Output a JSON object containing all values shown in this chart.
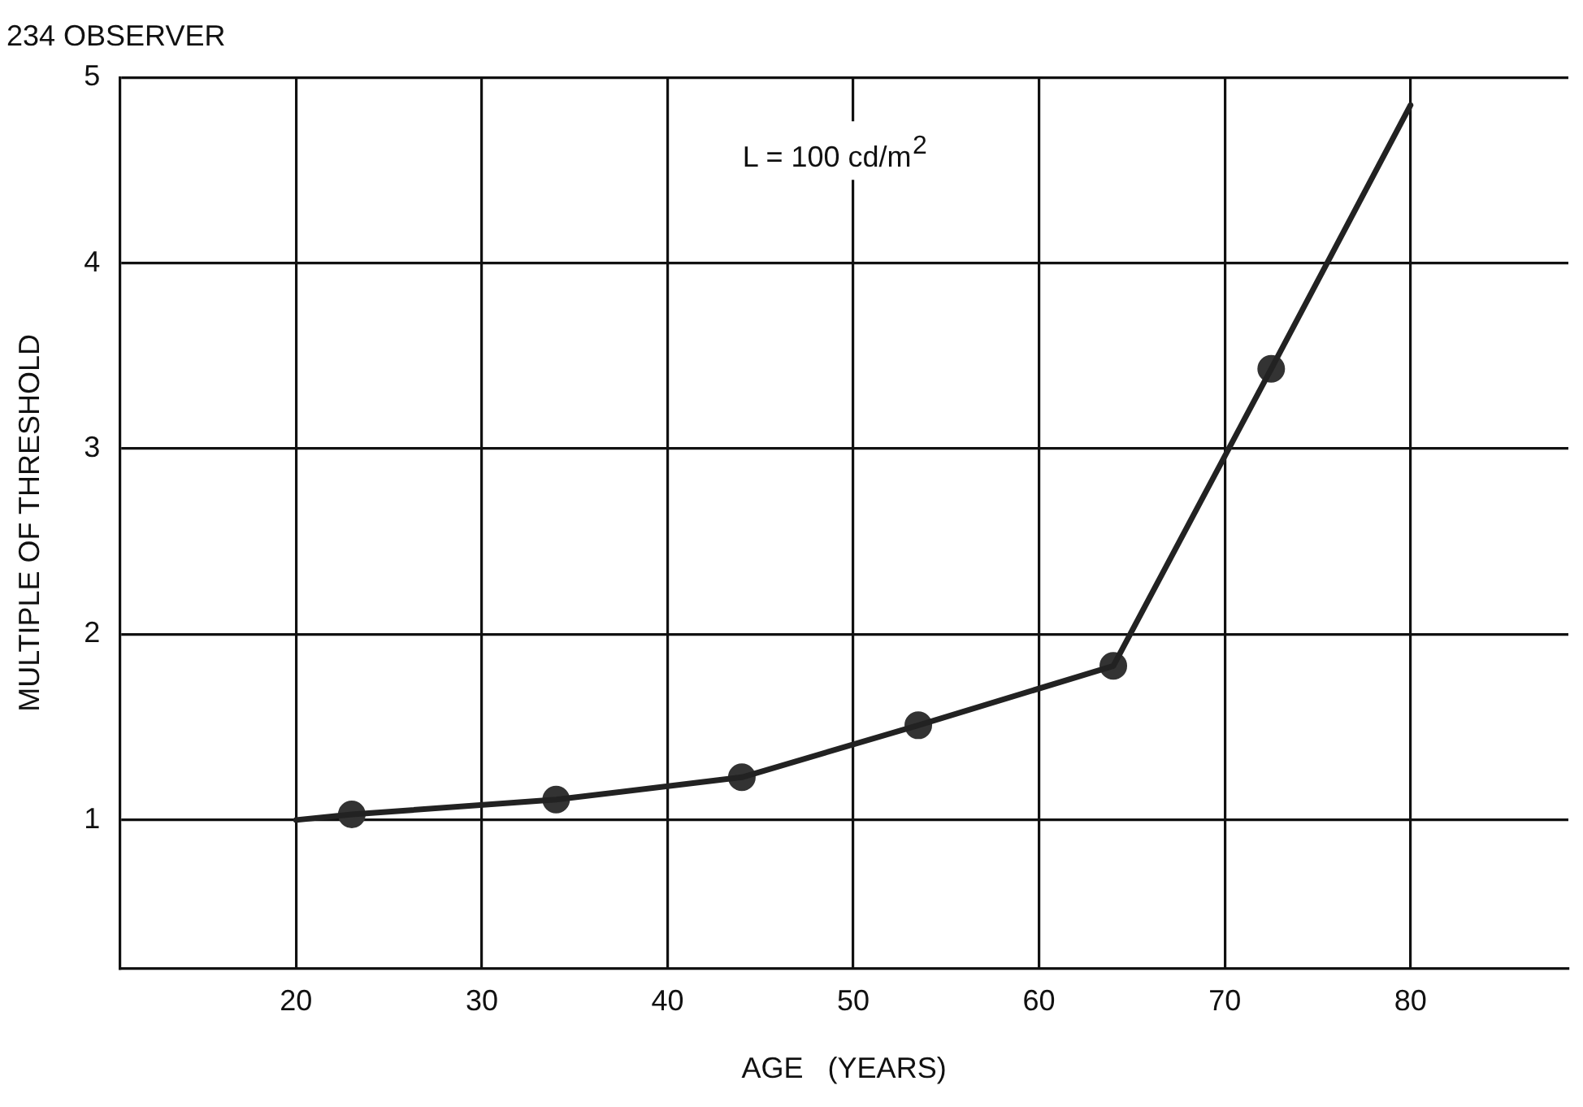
{
  "chart_data": {
    "type": "line",
    "title": "234 OBSERVER",
    "xlabel": "AGE   (YEARS)",
    "ylabel": "MULTIPLE OF THRESHOLD",
    "annotations": [
      "L = 100 cd/m$^{2}$"
    ],
    "xlim": [
      10.5,
      88.5
    ],
    "ylim": [
      0.2,
      5
    ],
    "xticks": [
      20,
      30,
      40,
      50,
      60,
      70,
      80
    ],
    "yticks": [
      1,
      2,
      3,
      4,
      5
    ],
    "grid": true,
    "legend": false,
    "series": [
      {
        "marker": "none",
        "color": "#222222",
        "x": [
          20,
          23,
          34,
          44,
          53.5,
          64,
          72.5,
          80
        ],
        "values": [
          1.0,
          1.03,
          1.11,
          1.23,
          1.51,
          1.83,
          3.43,
          4.85
        ]
      },
      {
        "type": "scatter",
        "marker": "circle",
        "color": "#333333",
        "x": [
          23,
          34,
          44,
          53.5,
          64,
          72.5
        ],
        "values": [
          1.03,
          1.11,
          1.23,
          1.51,
          1.83,
          3.43
        ]
      }
    ]
  }
}
